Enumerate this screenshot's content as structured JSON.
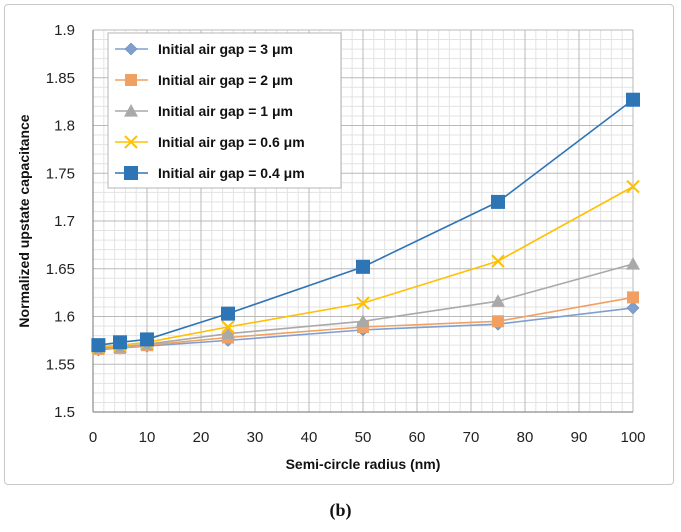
{
  "chart_data": {
    "type": "line",
    "xlabel": "Semi-circle radius (nm)",
    "ylabel": "Normalized upstate capacitance",
    "xlim": [
      0,
      100
    ],
    "ylim": [
      1.5,
      1.9
    ],
    "x_ticks": [
      "0",
      "10",
      "20",
      "30",
      "40",
      "50",
      "60",
      "70",
      "80",
      "90",
      "100"
    ],
    "y_ticks": [
      "1.5",
      "1.55",
      "1.6",
      "1.65",
      "1.7",
      "1.75",
      "1.8",
      "1.85",
      "1.9"
    ],
    "x_tick_values": [
      0,
      10,
      20,
      30,
      40,
      50,
      60,
      70,
      80,
      90,
      100
    ],
    "y_tick_values": [
      1.5,
      1.55,
      1.6,
      1.65,
      1.7,
      1.75,
      1.8,
      1.85,
      1.9
    ],
    "grid": true,
    "legend_position": "top-left",
    "x": [
      1,
      5,
      10,
      25,
      50,
      75,
      100
    ],
    "series": [
      {
        "name": "Initial air gap = 3 μm",
        "values": [
          1.565,
          1.567,
          1.569,
          1.575,
          1.586,
          1.592,
          1.609
        ],
        "color": "#7f9fcf",
        "marker": "diamond"
      },
      {
        "name": "Initial air gap = 2 μm",
        "values": [
          1.566,
          1.567,
          1.57,
          1.578,
          1.589,
          1.595,
          1.62
        ],
        "color": "#f0a062",
        "marker": "square"
      },
      {
        "name": "Initial air gap = 1 μm",
        "values": [
          1.567,
          1.568,
          1.571,
          1.582,
          1.595,
          1.616,
          1.655
        ],
        "color": "#a9a9a9",
        "marker": "triangle"
      },
      {
        "name": "Initial air gap = 0.6 μm",
        "values": [
          1.568,
          1.57,
          1.573,
          1.589,
          1.614,
          1.658,
          1.736
        ],
        "color": "#ffc000",
        "marker": "x"
      },
      {
        "name": "Initial air gap = 0.4 μm",
        "values": [
          1.57,
          1.573,
          1.576,
          1.603,
          1.652,
          1.72,
          1.827
        ],
        "color": "#2e75b6",
        "marker": "square"
      }
    ]
  },
  "figure": {
    "panel_label": "(b)"
  }
}
